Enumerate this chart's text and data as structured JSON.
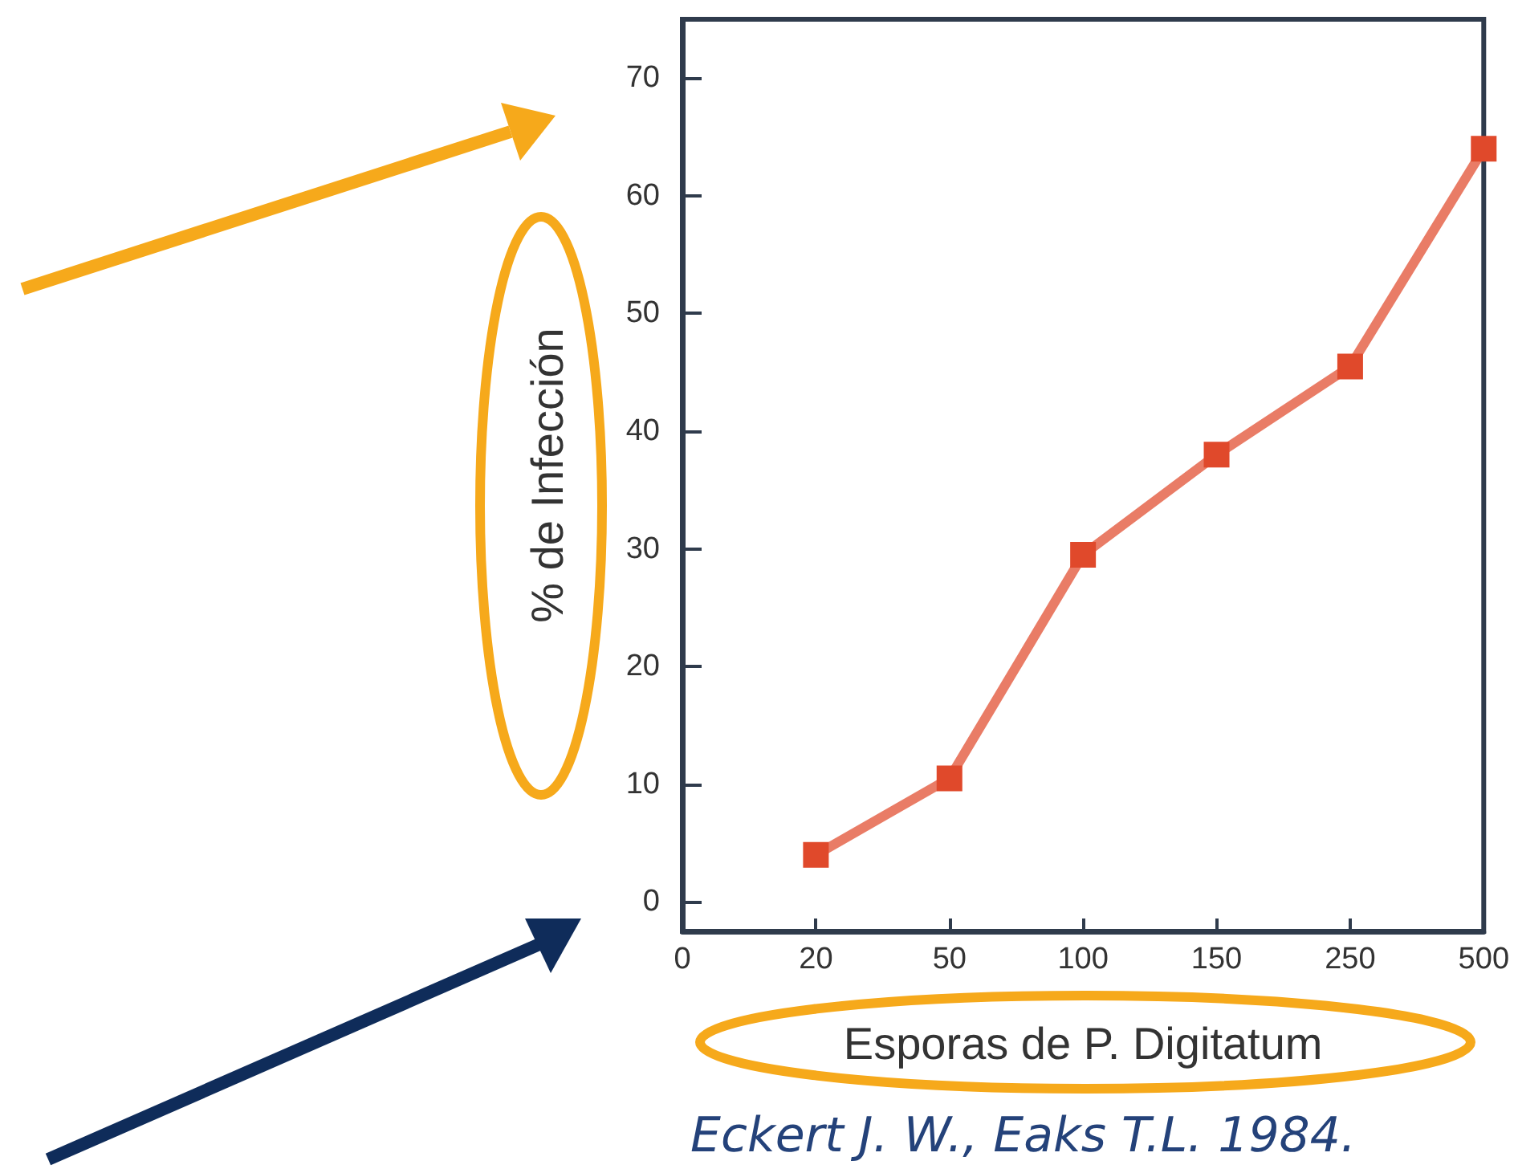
{
  "chart_data": {
    "type": "line",
    "xlabel": "Esporas de P. Digitatum",
    "ylabel": "% de Infección",
    "categories": [
      "0",
      "20",
      "50",
      "100",
      "150",
      "250",
      "500"
    ],
    "series": [
      {
        "color": "#e0492b",
        "values": [
          null,
          4,
          10.5,
          29.5,
          38,
          45.5,
          64
        ]
      }
    ],
    "ylim": [
      -2.5,
      75
    ],
    "yticks": [
      0,
      10,
      20,
      30,
      40,
      50,
      60,
      70
    ],
    "grid": false,
    "marker": "square",
    "line_style": "solid",
    "annotations": [
      "Eckert J. W., Eaks T.L. 1984."
    ]
  }
}
